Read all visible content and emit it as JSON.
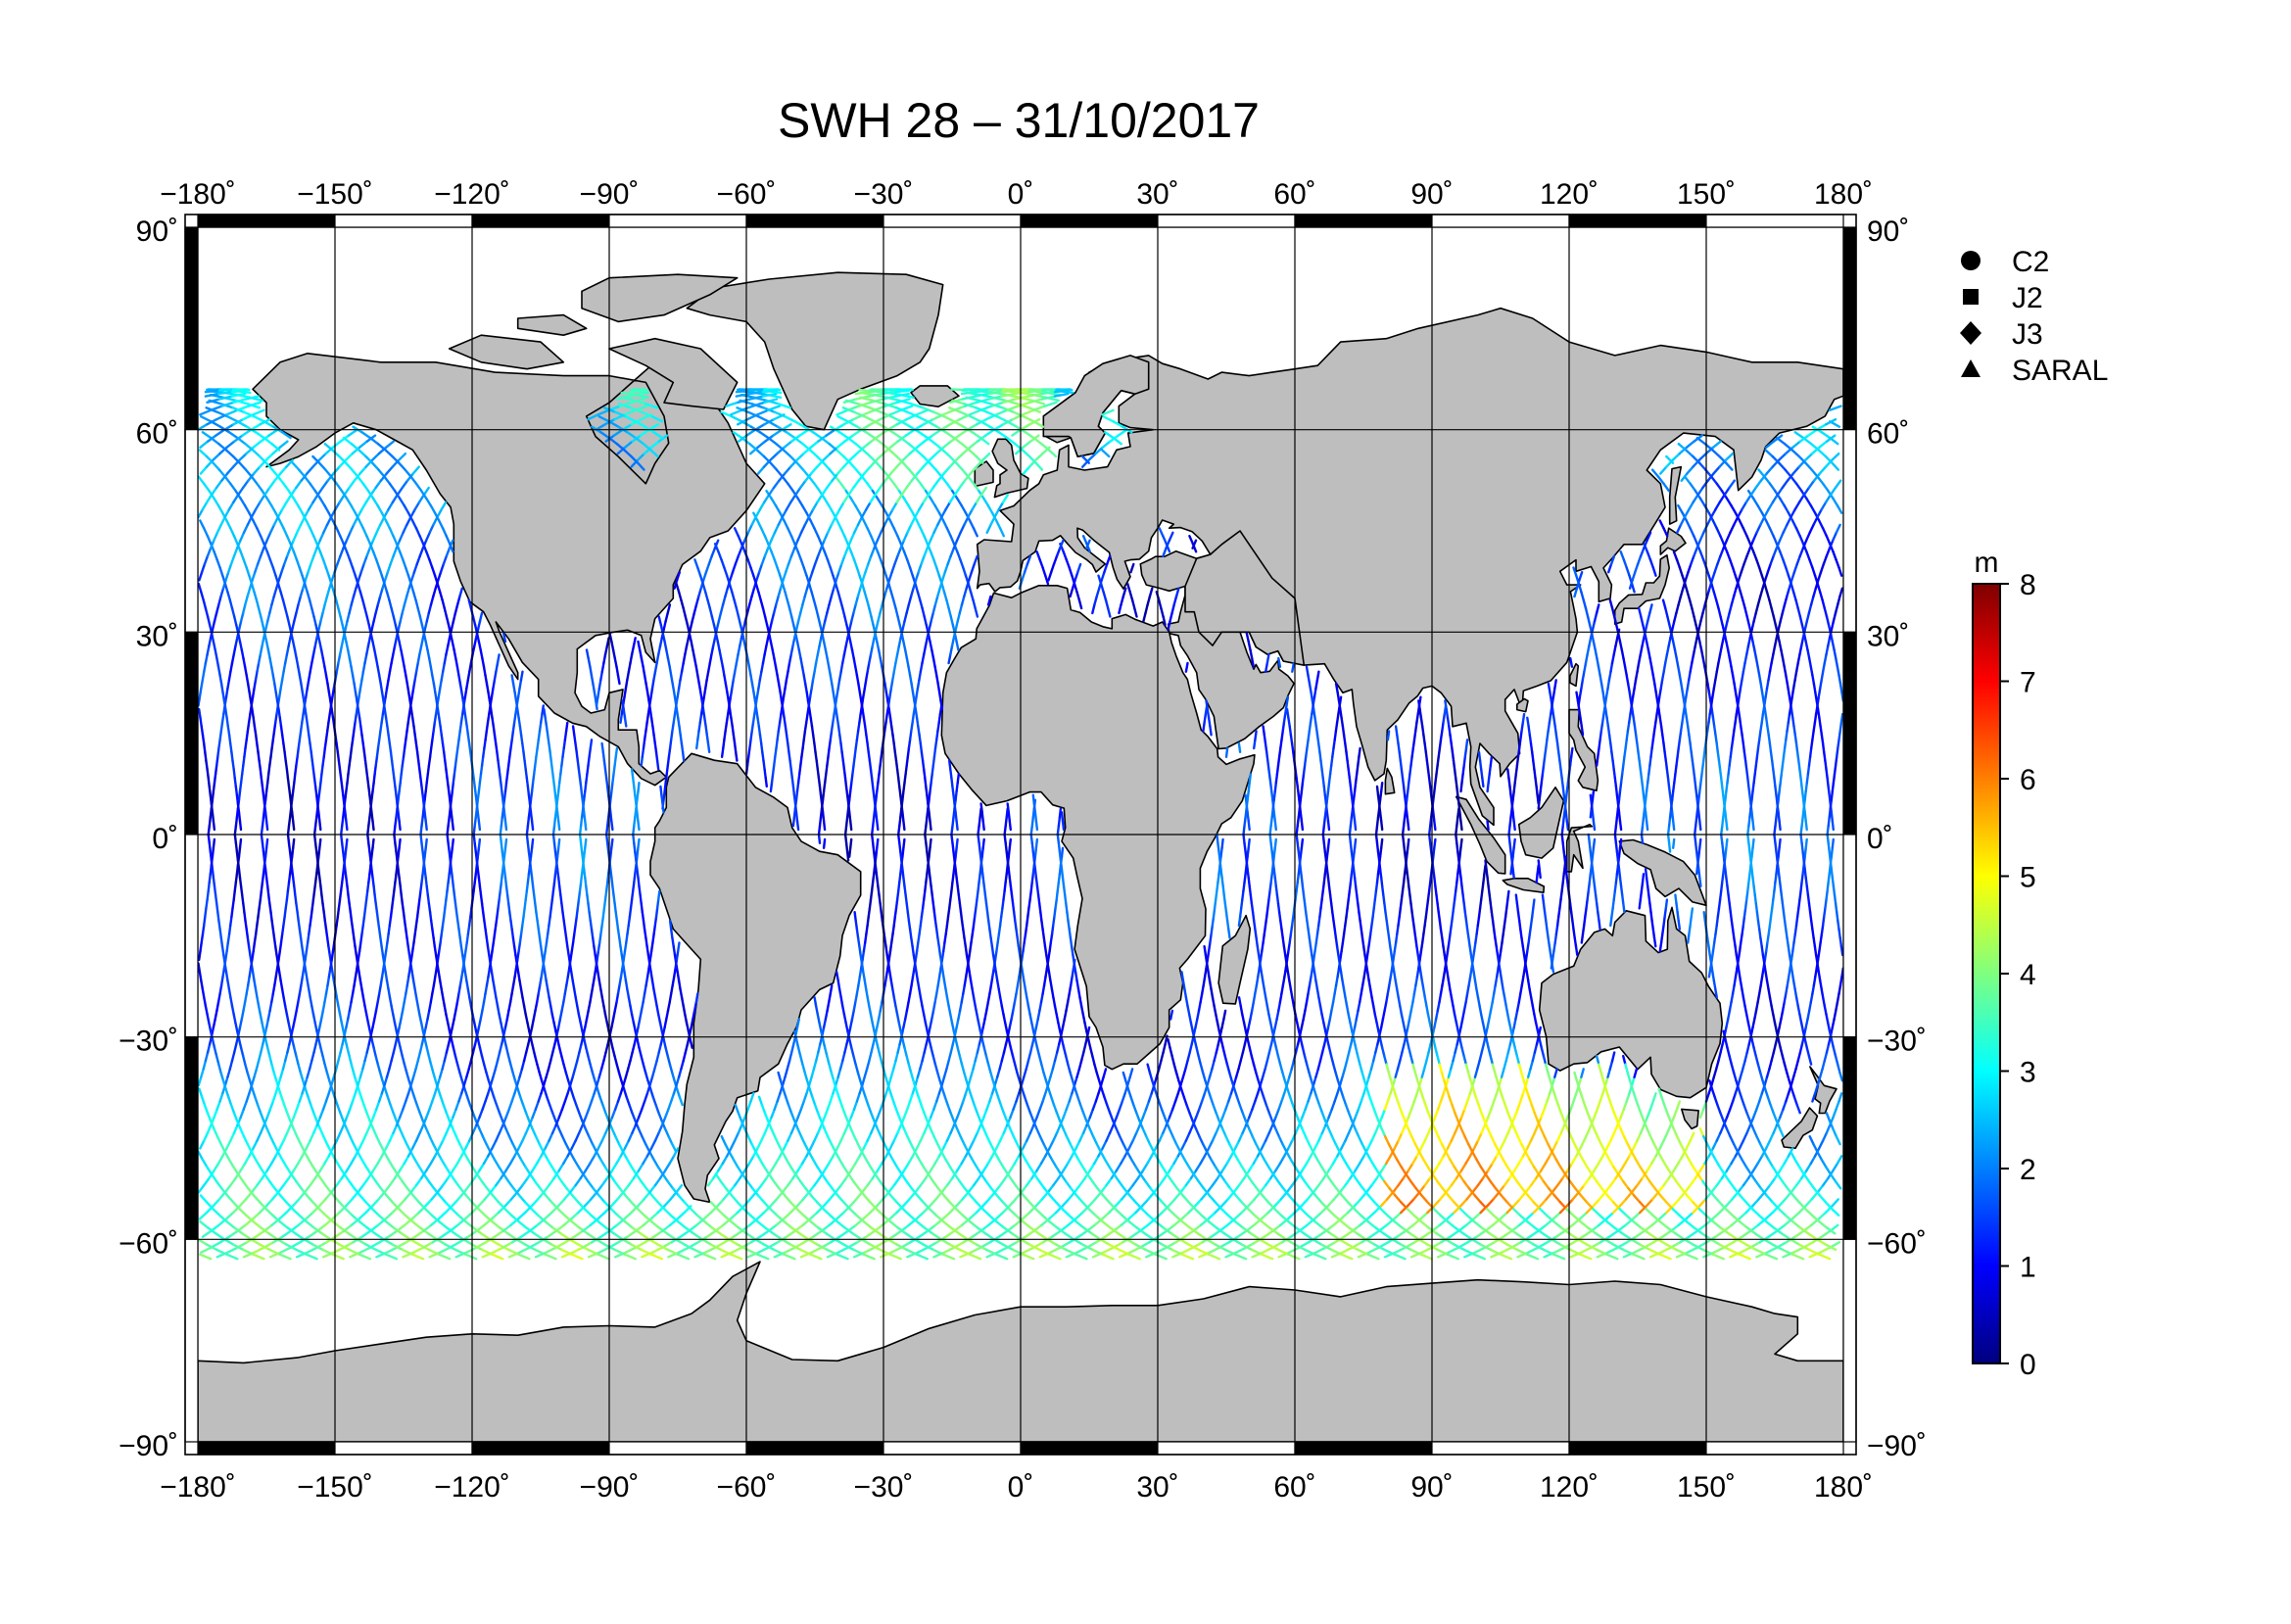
{
  "title": "SWH 28 – 31/10/2017",
  "map": {
    "lon_range": [
      -180,
      180
    ],
    "lat_range": [
      -90,
      90
    ],
    "lon_ticks": [
      -180,
      -150,
      -120,
      -90,
      -60,
      -30,
      0,
      30,
      60,
      90,
      120,
      150,
      180
    ],
    "lat_ticks": [
      90,
      60,
      30,
      0,
      -30,
      -60,
      -90
    ],
    "lon_tick_labels": [
      "−180˚",
      "−150˚",
      "−120˚",
      "−90˚",
      "−60˚",
      "−30˚",
      "0˚",
      "30˚",
      "60˚",
      "90˚",
      "120˚",
      "150˚",
      "180˚"
    ],
    "lat_tick_labels": [
      "90˚",
      "60˚",
      "30˚",
      "0˚",
      "−30˚",
      "−60˚",
      "−90˚"
    ],
    "grid": true,
    "land_color": "#bebebe",
    "ocean_color": "#ffffff"
  },
  "legend": {
    "placement": "right",
    "items": [
      {
        "label": "C2",
        "symbol": "circle"
      },
      {
        "label": "J2",
        "symbol": "square"
      },
      {
        "label": "J3",
        "symbol": "diamond"
      },
      {
        "label": "SARAL",
        "symbol": "triangle"
      }
    ]
  },
  "colorbar": {
    "unit": "m",
    "min": 0,
    "max": 8,
    "ticks": [
      "0",
      "1",
      "2",
      "3",
      "4",
      "5",
      "6",
      "7",
      "8"
    ],
    "colormap": [
      "#00007f",
      "#0000ff",
      "#007fff",
      "#00ffff",
      "#7fff7f",
      "#ffff00",
      "#ff7f00",
      "#ff0000",
      "#7f0000"
    ]
  },
  "chart_data": {
    "type": "map",
    "variable": "SWH",
    "unit": "m",
    "title": "SWH 28 – 31/10/2017"
  }
}
